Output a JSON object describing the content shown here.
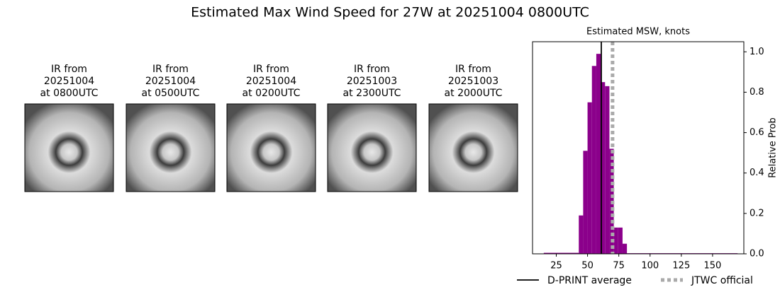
{
  "title": "Estimated Max Wind Speed for 27W at 20251004 0800UTC",
  "panels": [
    {
      "lines": [
        "IR from",
        "20251004",
        "at 0800UTC"
      ]
    },
    {
      "lines": [
        "IR from",
        "20251004",
        "at 0500UTC"
      ]
    },
    {
      "lines": [
        "IR from",
        "20251004",
        "at 0200UTC"
      ]
    },
    {
      "lines": [
        "IR from",
        "20251003",
        "at 2300UTC"
      ]
    },
    {
      "lines": [
        "IR from",
        "20251003",
        "at 2000UTC"
      ]
    }
  ],
  "chart_data": {
    "type": "histogram",
    "title": "Estimated MSW, knots",
    "ylabel": "Relative Prob",
    "bins": [
      15,
      43,
      46.5,
      50,
      53.5,
      57,
      60.5,
      64,
      67.5,
      71,
      74.5,
      78,
      81.5,
      170
    ],
    "values": [
      0.005,
      0.19,
      0.51,
      0.75,
      0.93,
      0.99,
      0.85,
      0.83,
      0.52,
      0.13,
      0.13,
      0.05,
      0.003
    ],
    "color": "#8b008b",
    "xlim": [
      6,
      175
    ],
    "ylim": [
      0,
      1.05
    ],
    "xticks": [
      25,
      50,
      75,
      100,
      125,
      150
    ],
    "yticks": [
      {
        "value": 0,
        "label": "0.0"
      },
      {
        "value": 0.2,
        "label": "0.2"
      },
      {
        "value": 0.4,
        "label": "0.4"
      },
      {
        "value": 0.6,
        "label": "0.6"
      },
      {
        "value": 0.8,
        "label": "0.8"
      },
      {
        "value": 1,
        "label": "1.0"
      }
    ],
    "lines": [
      {
        "name": "D-PRINT average",
        "value": 61,
        "color": "#000000",
        "style": "solid"
      },
      {
        "name": "JTWC official",
        "value": 70,
        "color": "#aaaaaa",
        "style": "dotted"
      }
    ]
  }
}
